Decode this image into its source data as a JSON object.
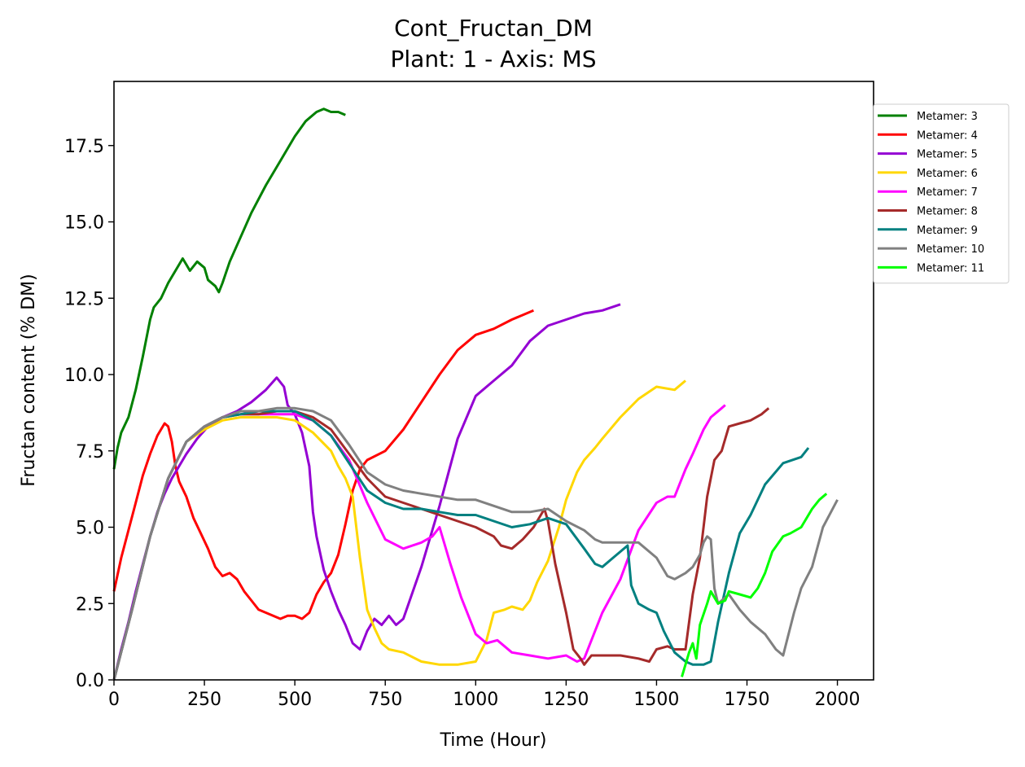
{
  "chart_data": {
    "type": "line",
    "title": "Cont_Fructan_DM",
    "subtitle": "Plant: 1 - Axis: MS",
    "xlabel": "Time (Hour)",
    "ylabel": "Fructan content (% DM)",
    "xlim": [
      0,
      2100
    ],
    "ylim": [
      0,
      19.6
    ],
    "xticks": [
      0,
      250,
      500,
      750,
      1000,
      1250,
      1500,
      1750,
      2000
    ],
    "yticks": [
      0.0,
      2.5,
      5.0,
      7.5,
      10.0,
      12.5,
      15.0,
      17.5
    ],
    "xtick_labels": [
      "0",
      "250",
      "500",
      "750",
      "1000",
      "1250",
      "1500",
      "1750",
      "2000"
    ],
    "ytick_labels": [
      "0.0",
      "2.5",
      "5.0",
      "7.5",
      "10.0",
      "12.5",
      "15.0",
      "17.5"
    ],
    "grid": false,
    "legend_position": "outside-right",
    "series": [
      {
        "name": "Metamer: 3",
        "color": "#008000",
        "x": [
          0,
          10,
          20,
          40,
          60,
          80,
          100,
          110,
          130,
          150,
          170,
          190,
          200,
          210,
          230,
          250,
          260,
          280,
          290,
          300,
          320,
          350,
          380,
          420,
          460,
          500,
          530,
          560,
          580,
          600,
          620,
          640
        ],
        "y": [
          6.9,
          7.6,
          8.1,
          8.6,
          9.5,
          10.6,
          11.8,
          12.2,
          12.5,
          13.0,
          13.4,
          13.8,
          13.6,
          13.4,
          13.7,
          13.5,
          13.1,
          12.9,
          12.7,
          13.0,
          13.7,
          14.5,
          15.3,
          16.2,
          17.0,
          17.8,
          18.3,
          18.6,
          18.7,
          18.6,
          18.6,
          18.5
        ]
      },
      {
        "name": "Metamer: 4",
        "color": "#ff0000",
        "x": [
          0,
          20,
          40,
          60,
          80,
          100,
          120,
          140,
          150,
          160,
          170,
          180,
          200,
          220,
          240,
          260,
          280,
          300,
          320,
          340,
          360,
          380,
          400,
          420,
          440,
          460,
          480,
          500,
          520,
          540,
          560,
          580,
          600,
          620,
          640,
          660,
          680,
          700,
          750,
          800,
          850,
          900,
          950,
          1000,
          1050,
          1100,
          1160
        ],
        "y": [
          2.9,
          4.0,
          4.9,
          5.8,
          6.7,
          7.4,
          8.0,
          8.4,
          8.3,
          7.8,
          7.0,
          6.5,
          6.0,
          5.3,
          4.8,
          4.3,
          3.7,
          3.4,
          3.5,
          3.3,
          2.9,
          2.6,
          2.3,
          2.2,
          2.1,
          2.0,
          2.1,
          2.1,
          2.0,
          2.2,
          2.8,
          3.2,
          3.5,
          4.1,
          5.1,
          6.2,
          6.9,
          7.2,
          7.5,
          8.2,
          9.1,
          10.0,
          10.8,
          11.3,
          11.5,
          11.8,
          12.1
        ]
      },
      {
        "name": "Metamer: 5",
        "color": "#9400d3",
        "x": [
          0,
          20,
          40,
          60,
          80,
          100,
          120,
          140,
          160,
          180,
          200,
          230,
          260,
          300,
          340,
          380,
          420,
          450,
          470,
          480,
          500,
          520,
          540,
          550,
          560,
          580,
          600,
          620,
          640,
          660,
          680,
          700,
          720,
          740,
          760,
          780,
          800,
          850,
          900,
          950,
          1000,
          1050,
          1100,
          1150,
          1200,
          1250,
          1300,
          1350,
          1400
        ],
        "y": [
          0,
          1.0,
          1.9,
          2.9,
          3.8,
          4.7,
          5.5,
          6.1,
          6.6,
          7.0,
          7.4,
          7.9,
          8.3,
          8.6,
          8.8,
          9.1,
          9.5,
          9.9,
          9.6,
          9.0,
          8.7,
          8.1,
          7.0,
          5.5,
          4.7,
          3.6,
          2.9,
          2.3,
          1.8,
          1.2,
          1.0,
          1.6,
          2.0,
          1.8,
          2.1,
          1.8,
          2.0,
          3.7,
          5.7,
          7.9,
          9.3,
          9.8,
          10.3,
          11.1,
          11.6,
          11.8,
          12.0,
          12.1,
          12.3
        ]
      },
      {
        "name": "Metamer: 6",
        "color": "#ffd700",
        "x": [
          0,
          50,
          100,
          150,
          200,
          250,
          300,
          350,
          400,
          450,
          500,
          550,
          600,
          620,
          640,
          660,
          680,
          700,
          720,
          740,
          760,
          800,
          850,
          900,
          950,
          1000,
          1030,
          1050,
          1080,
          1100,
          1130,
          1150,
          1170,
          1200,
          1230,
          1250,
          1280,
          1300,
          1330,
          1350,
          1400,
          1450,
          1500,
          1550,
          1580
        ],
        "y": [
          0,
          2.3,
          4.7,
          6.6,
          7.8,
          8.2,
          8.5,
          8.6,
          8.6,
          8.6,
          8.5,
          8.1,
          7.5,
          7.0,
          6.6,
          6.0,
          4.0,
          2.3,
          1.7,
          1.2,
          1.0,
          0.9,
          0.6,
          0.5,
          0.5,
          0.6,
          1.3,
          2.2,
          2.3,
          2.4,
          2.3,
          2.6,
          3.2,
          3.9,
          5.0,
          5.9,
          6.8,
          7.2,
          7.6,
          7.9,
          8.6,
          9.2,
          9.6,
          9.5,
          9.8
        ]
      },
      {
        "name": "Metamer: 7",
        "color": "#ff00ff",
        "x": [
          0,
          50,
          100,
          150,
          200,
          250,
          300,
          350,
          400,
          450,
          500,
          550,
          600,
          650,
          700,
          750,
          800,
          850,
          880,
          900,
          930,
          960,
          1000,
          1030,
          1060,
          1100,
          1150,
          1200,
          1250,
          1280,
          1300,
          1330,
          1350,
          1400,
          1450,
          1500,
          1530,
          1550,
          1580,
          1600,
          1630,
          1650,
          1680,
          1690
        ],
        "y": [
          0,
          2.3,
          4.7,
          6.6,
          7.8,
          8.3,
          8.6,
          8.7,
          8.7,
          8.7,
          8.7,
          8.5,
          8.0,
          7.2,
          5.8,
          4.6,
          4.3,
          4.5,
          4.7,
          5.0,
          3.8,
          2.7,
          1.5,
          1.2,
          1.3,
          0.9,
          0.8,
          0.7,
          0.8,
          0.6,
          0.7,
          1.6,
          2.2,
          3.3,
          4.9,
          5.8,
          6.0,
          6.0,
          6.9,
          7.4,
          8.2,
          8.6,
          8.9,
          9.0
        ]
      },
      {
        "name": "Metamer: 8",
        "color": "#a52a2a",
        "x": [
          0,
          50,
          100,
          150,
          200,
          250,
          300,
          350,
          400,
          450,
          500,
          550,
          600,
          650,
          700,
          750,
          800,
          850,
          900,
          950,
          1000,
          1050,
          1070,
          1100,
          1130,
          1160,
          1180,
          1190,
          1200,
          1220,
          1250,
          1270,
          1290,
          1300,
          1320,
          1350,
          1400,
          1450,
          1480,
          1500,
          1530,
          1550,
          1580,
          1600,
          1620,
          1640,
          1660,
          1680,
          1700,
          1730,
          1760,
          1790,
          1810
        ],
        "y": [
          0,
          2.3,
          4.7,
          6.6,
          7.8,
          8.3,
          8.6,
          8.7,
          8.7,
          8.8,
          8.8,
          8.6,
          8.2,
          7.4,
          6.6,
          6.0,
          5.8,
          5.6,
          5.4,
          5.2,
          5.0,
          4.7,
          4.4,
          4.3,
          4.6,
          5.0,
          5.4,
          5.6,
          5.2,
          3.8,
          2.2,
          1.0,
          0.7,
          0.5,
          0.8,
          0.8,
          0.8,
          0.7,
          0.6,
          1.0,
          1.1,
          1.0,
          1.0,
          2.8,
          4.0,
          6.0,
          7.2,
          7.5,
          8.3,
          8.4,
          8.5,
          8.7,
          8.9
        ]
      },
      {
        "name": "Metamer: 9",
        "color": "#008080",
        "x": [
          0,
          50,
          100,
          150,
          200,
          250,
          300,
          350,
          400,
          450,
          500,
          550,
          600,
          650,
          700,
          750,
          800,
          850,
          900,
          950,
          1000,
          1050,
          1100,
          1150,
          1200,
          1250,
          1300,
          1330,
          1350,
          1380,
          1400,
          1420,
          1430,
          1450,
          1480,
          1500,
          1520,
          1550,
          1580,
          1600,
          1630,
          1650,
          1670,
          1700,
          1730,
          1760,
          1800,
          1850,
          1900,
          1920
        ],
        "y": [
          0,
          2.3,
          4.7,
          6.6,
          7.8,
          8.3,
          8.6,
          8.7,
          8.8,
          8.8,
          8.8,
          8.5,
          8.0,
          7.1,
          6.2,
          5.8,
          5.6,
          5.6,
          5.5,
          5.4,
          5.4,
          5.2,
          5.0,
          5.1,
          5.3,
          5.1,
          4.3,
          3.8,
          3.7,
          4.0,
          4.2,
          4.4,
          3.1,
          2.5,
          2.3,
          2.2,
          1.6,
          0.9,
          0.6,
          0.5,
          0.5,
          0.6,
          1.9,
          3.5,
          4.8,
          5.4,
          6.4,
          7.1,
          7.3,
          7.6
        ]
      },
      {
        "name": "Metamer: 10",
        "color": "#808080",
        "x": [
          0,
          50,
          100,
          150,
          200,
          250,
          300,
          350,
          400,
          450,
          500,
          550,
          600,
          650,
          700,
          750,
          800,
          850,
          900,
          950,
          1000,
          1050,
          1100,
          1150,
          1200,
          1250,
          1300,
          1330,
          1350,
          1400,
          1450,
          1500,
          1530,
          1550,
          1580,
          1600,
          1620,
          1630,
          1640,
          1650,
          1660,
          1670,
          1700,
          1730,
          1760,
          1800,
          1830,
          1850,
          1880,
          1900,
          1930,
          1960,
          2000
        ],
        "y": [
          0,
          2.3,
          4.7,
          6.6,
          7.8,
          8.3,
          8.6,
          8.8,
          8.8,
          8.9,
          8.9,
          8.8,
          8.5,
          7.7,
          6.8,
          6.4,
          6.2,
          6.1,
          6.0,
          5.9,
          5.9,
          5.7,
          5.5,
          5.5,
          5.6,
          5.2,
          4.9,
          4.6,
          4.5,
          4.5,
          4.5,
          4.0,
          3.4,
          3.3,
          3.5,
          3.7,
          4.1,
          4.5,
          4.7,
          4.6,
          3.0,
          2.5,
          2.8,
          2.3,
          1.9,
          1.5,
          1.0,
          0.8,
          2.2,
          3.0,
          3.7,
          5.0,
          5.9
        ]
      },
      {
        "name": "Metamer: 11",
        "color": "#00ff00",
        "x": [
          1570,
          1590,
          1600,
          1610,
          1620,
          1640,
          1650,
          1670,
          1690,
          1700,
          1730,
          1760,
          1780,
          1800,
          1820,
          1850,
          1870,
          1900,
          1930,
          1950,
          1970
        ],
        "y": [
          0.1,
          0.9,
          1.2,
          0.7,
          1.8,
          2.5,
          2.9,
          2.5,
          2.6,
          2.9,
          2.8,
          2.7,
          3.0,
          3.5,
          4.2,
          4.7,
          4.8,
          5.0,
          5.6,
          5.9,
          6.1
        ]
      }
    ]
  }
}
